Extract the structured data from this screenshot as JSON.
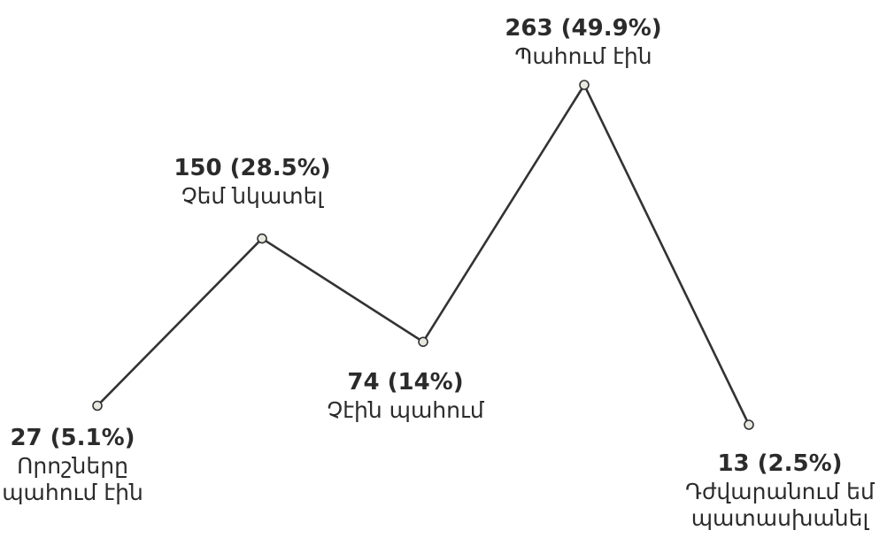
{
  "chart_data": {
    "type": "line",
    "title": "",
    "xlabel": "",
    "ylabel": "",
    "categories": [
      "Որոշները պահում էին",
      "Չեմ նկատել",
      "Չէին պահում",
      "Պահում էին",
      "Դժվարանում եմ պատասխանել"
    ],
    "category_lines": [
      [
        "Որոշները",
        "պահում էին"
      ],
      [
        "Չեմ նկատել"
      ],
      [
        "Չէին պահում"
      ],
      [
        "Պահում էին"
      ],
      [
        "Դժվարանում եմ",
        "պատասխանել"
      ]
    ],
    "values": [
      27,
      150,
      74,
      263,
      13
    ],
    "percents": [
      "5.1%",
      "28.5%",
      "14%",
      "49.9%",
      "2.5%"
    ],
    "value_labels": [
      "27 (5.1%)",
      "150 (28.5%)",
      "74 (14%)",
      "263 (49.9%)",
      "13 (2.5%)"
    ],
    "grid": false,
    "legend": "none",
    "colors": {
      "line": "#333333",
      "marker_fill": "#e8e8e0",
      "text": "#2b2b2b"
    }
  }
}
